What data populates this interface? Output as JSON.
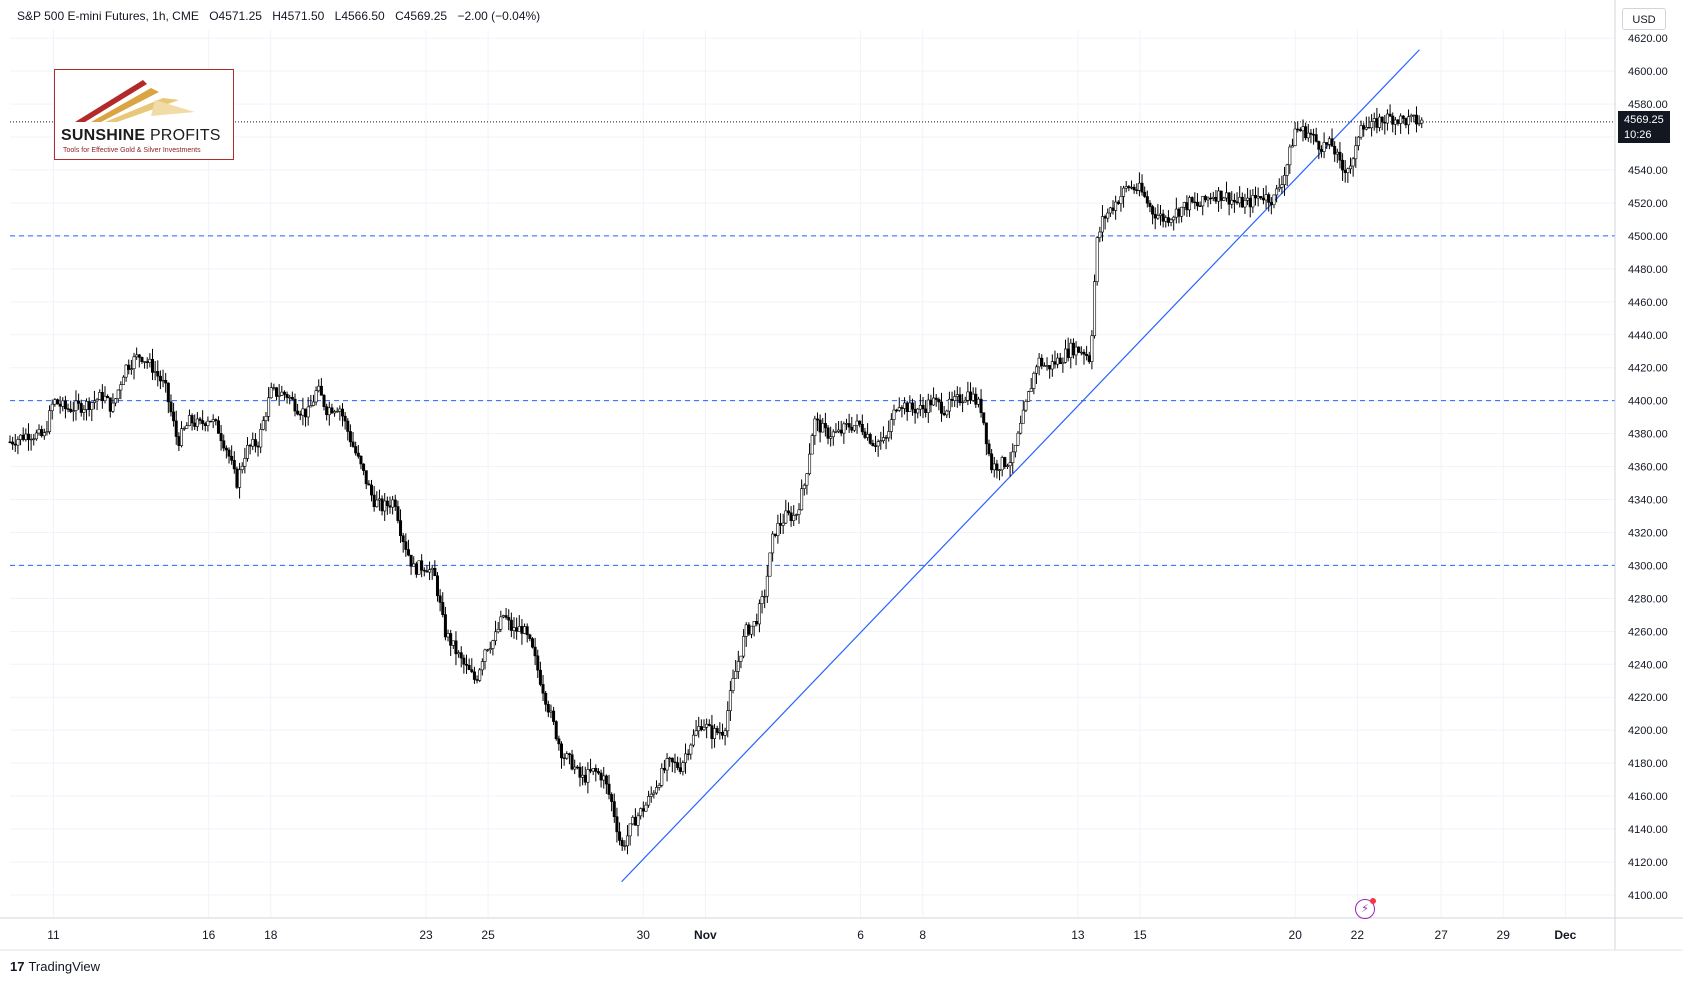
{
  "header": {
    "symbol": "S&P 500 E-mini Futures, 1h, CME",
    "open": "O4571.25",
    "high": "H4571.50",
    "low": "L4566.50",
    "close": "C4569.25",
    "change": "−2.00 (−0.04%)"
  },
  "logo": {
    "name_bold": "SUNSHINE",
    "name_light": "PROFITS",
    "tagline": "Tools for Effective Gold & Silver Investments"
  },
  "currency": "USD",
  "price_badge": {
    "price": "4569.25",
    "countdown": "10:26"
  },
  "branding": {
    "mark": "17",
    "name": "TradingView"
  },
  "colors": {
    "candle": "#000000",
    "trendline": "#2962ff",
    "hline": "#2962ff",
    "grid": "#f0f3fa",
    "axis_text": "#131722",
    "badge_bg": "#131722"
  },
  "chart_data": {
    "type": "candlestick",
    "timeframe": "1h",
    "ylim": [
      4086,
      4625
    ],
    "y_ticks": [
      4100,
      4120,
      4140,
      4160,
      4180,
      4200,
      4220,
      4240,
      4260,
      4280,
      4300,
      4320,
      4340,
      4360,
      4380,
      4400,
      4420,
      4440,
      4460,
      4480,
      4500,
      4520,
      4540,
      4560,
      4580,
      4600,
      4620
    ],
    "y_tick_labels": [
      "4100.00",
      "4120.00",
      "4140.00",
      "4160.00",
      "4180.00",
      "4200.00",
      "4220.00",
      "4240.00",
      "4260.00",
      "4280.00",
      "4300.00",
      "4320.00",
      "4340.00",
      "4360.00",
      "4380.00",
      "4400.00",
      "4420.00",
      "4440.00",
      "4460.00",
      "4480.00",
      "4500.00",
      "4520.00",
      "4540.00",
      "4560.00",
      "4580.00",
      "4600.00",
      "4620.00"
    ],
    "x_ticks": [
      {
        "label": "11",
        "day": 11
      },
      {
        "label": "16",
        "day": 16
      },
      {
        "label": "18",
        "day": 18
      },
      {
        "label": "23",
        "day": 23
      },
      {
        "label": "25",
        "day": 25
      },
      {
        "label": "30",
        "day": 30
      },
      {
        "label": "Nov",
        "day": 32
      },
      {
        "label": "6",
        "day": 37
      },
      {
        "label": "8",
        "day": 39
      },
      {
        "label": "13",
        "day": 44
      },
      {
        "label": "15",
        "day": 46
      },
      {
        "label": "20",
        "day": 51
      },
      {
        "label": "22",
        "day": 53
      },
      {
        "label": "27",
        "day": 55.7
      },
      {
        "label": "29",
        "day": 57.7
      },
      {
        "label": "Dec",
        "day": 59.7
      }
    ],
    "x_range_days": [
      9.6,
      61.3
    ],
    "horizontal_lines": [
      4500,
      4400,
      4300
    ],
    "current_price_line": 4569.25,
    "trendline": {
      "from": {
        "day": 29.3,
        "price": 4108
      },
      "to": {
        "day": 55.0,
        "price": 4613
      }
    },
    "path": [
      [
        9.6,
        4375
      ],
      [
        10.2,
        4380
      ],
      [
        10.7,
        4378
      ],
      [
        11.0,
        4400
      ],
      [
        11.4,
        4395
      ],
      [
        12.0,
        4397
      ],
      [
        12.6,
        4403
      ],
      [
        12.9,
        4395
      ],
      [
        13.3,
        4420
      ],
      [
        13.8,
        4428
      ],
      [
        14.2,
        4420
      ],
      [
        14.6,
        4408
      ],
      [
        15.0,
        4375
      ],
      [
        15.4,
        4388
      ],
      [
        15.7,
        4385
      ],
      [
        16.0,
        4390
      ],
      [
        16.3,
        4383
      ],
      [
        16.6,
        4370
      ],
      [
        16.9,
        4350
      ],
      [
        17.2,
        4370
      ],
      [
        17.6,
        4375
      ],
      [
        18.0,
        4405
      ],
      [
        18.5,
        4404
      ],
      [
        18.9,
        4395
      ],
      [
        19.2,
        4392
      ],
      [
        19.5,
        4407
      ],
      [
        19.8,
        4395
      ],
      [
        20.2,
        4397
      ],
      [
        20.6,
        4375
      ],
      [
        20.9,
        4360
      ],
      [
        21.3,
        4340
      ],
      [
        21.6,
        4335
      ],
      [
        22.0,
        4340
      ],
      [
        22.2,
        4320
      ],
      [
        22.6,
        4298
      ],
      [
        23.0,
        4300
      ],
      [
        23.3,
        4292
      ],
      [
        23.6,
        4260
      ],
      [
        23.9,
        4250
      ],
      [
        24.2,
        4240
      ],
      [
        24.6,
        4230
      ],
      [
        24.9,
        4250
      ],
      [
        25.2,
        4255
      ],
      [
        25.5,
        4270
      ],
      [
        25.8,
        4260
      ],
      [
        26.1,
        4262
      ],
      [
        26.4,
        4250
      ],
      [
        26.7,
        4230
      ],
      [
        27.0,
        4210
      ],
      [
        27.4,
        4185
      ],
      [
        27.7,
        4180
      ],
      [
        28.0,
        4170
      ],
      [
        28.4,
        4175
      ],
      [
        28.7,
        4172
      ],
      [
        29.0,
        4155
      ],
      [
        29.3,
        4128
      ],
      [
        29.7,
        4145
      ],
      [
        30.1,
        4155
      ],
      [
        30.5,
        4170
      ],
      [
        30.8,
        4180
      ],
      [
        31.2,
        4178
      ],
      [
        31.5,
        4192
      ],
      [
        31.9,
        4205
      ],
      [
        32.2,
        4198
      ],
      [
        32.6,
        4200
      ],
      [
        32.9,
        4230
      ],
      [
        33.3,
        4260
      ],
      [
        33.6,
        4265
      ],
      [
        33.9,
        4282
      ],
      [
        34.2,
        4320
      ],
      [
        34.6,
        4330
      ],
      [
        34.9,
        4330
      ],
      [
        35.2,
        4350
      ],
      [
        35.5,
        4388
      ],
      [
        35.9,
        4380
      ],
      [
        36.3,
        4380
      ],
      [
        36.6,
        4385
      ],
      [
        37.0,
        4385
      ],
      [
        37.4,
        4375
      ],
      [
        37.8,
        4375
      ],
      [
        38.2,
        4400
      ],
      [
        38.6,
        4395
      ],
      [
        39.0,
        4395
      ],
      [
        39.3,
        4400
      ],
      [
        39.7,
        4395
      ],
      [
        40.1,
        4400
      ],
      [
        40.5,
        4405
      ],
      [
        40.9,
        4395
      ],
      [
        41.2,
        4360
      ],
      [
        41.6,
        4362
      ],
      [
        41.9,
        4365
      ],
      [
        42.3,
        4395
      ],
      [
        42.7,
        4425
      ],
      [
        43.0,
        4420
      ],
      [
        43.4,
        4425
      ],
      [
        43.8,
        4432
      ],
      [
        44.2,
        4430
      ],
      [
        44.4,
        4425
      ],
      [
        44.6,
        4495
      ],
      [
        44.8,
        4510
      ],
      [
        45.2,
        4520
      ],
      [
        45.6,
        4530
      ],
      [
        46.0,
        4528
      ],
      [
        46.4,
        4515
      ],
      [
        46.8,
        4510
      ],
      [
        47.2,
        4515
      ],
      [
        47.6,
        4520
      ],
      [
        47.9,
        4518
      ],
      [
        48.3,
        4525
      ],
      [
        48.7,
        4525
      ],
      [
        49.1,
        4520
      ],
      [
        49.5,
        4520
      ],
      [
        49.9,
        4525
      ],
      [
        50.3,
        4522
      ],
      [
        50.7,
        4540
      ],
      [
        51.0,
        4565
      ],
      [
        51.4,
        4563
      ],
      [
        51.8,
        4555
      ],
      [
        52.2,
        4555
      ],
      [
        52.5,
        4540
      ],
      [
        52.9,
        4545
      ],
      [
        53.1,
        4570
      ],
      [
        53.4,
        4565
      ],
      [
        53.7,
        4570
      ],
      [
        54.1,
        4572
      ],
      [
        54.5,
        4570
      ],
      [
        54.8,
        4570
      ],
      [
        55.1,
        4569
      ]
    ]
  }
}
